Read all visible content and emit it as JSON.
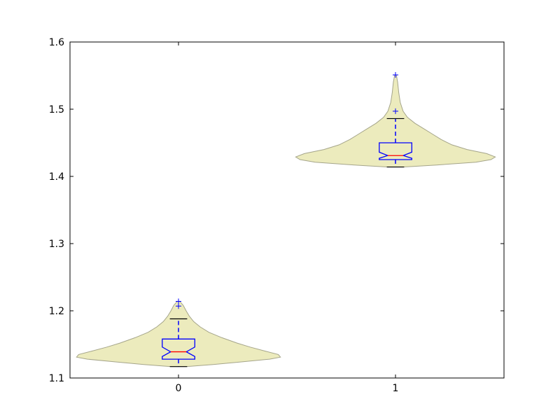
{
  "chart_data": {
    "type": "violin-box",
    "title": "",
    "xlabel": "",
    "ylabel": "",
    "ylim": [
      1.1,
      1.6
    ],
    "xlim": [
      -0.5,
      1.5
    ],
    "yticks": [
      "1.1",
      "1.2",
      "1.3",
      "1.4",
      "1.5",
      "1.6"
    ],
    "xticks": [
      "0",
      "1"
    ],
    "grid": false,
    "colors": {
      "violin_fill": "#ecebbd",
      "violin_edge": "#a5a58a",
      "box": "#0000ff",
      "median": "#ff0000",
      "cap": "#000000"
    },
    "groups": [
      {
        "x": 0,
        "q1": 1.128,
        "median": 1.139,
        "q3": 1.158,
        "notch_low": 1.132,
        "notch_high": 1.146,
        "whisker_low": 1.117,
        "whisker_high": 1.188,
        "outliers": [
          1.207,
          1.214
        ],
        "violin": [
          [
            1.117,
            0.035
          ],
          [
            1.12,
            0.16
          ],
          [
            1.124,
            0.29
          ],
          [
            1.128,
            0.42
          ],
          [
            1.131,
            0.47
          ],
          [
            1.135,
            0.46
          ],
          [
            1.14,
            0.4
          ],
          [
            1.146,
            0.33
          ],
          [
            1.152,
            0.27
          ],
          [
            1.16,
            0.2
          ],
          [
            1.168,
            0.14
          ],
          [
            1.176,
            0.1
          ],
          [
            1.184,
            0.07
          ],
          [
            1.192,
            0.05
          ],
          [
            1.2,
            0.035
          ],
          [
            1.208,
            0.022
          ],
          [
            1.214,
            0.006
          ]
        ]
      },
      {
        "x": 1,
        "q1": 1.425,
        "median": 1.431,
        "q3": 1.45,
        "notch_low": 1.427,
        "notch_high": 1.436,
        "whisker_low": 1.414,
        "whisker_high": 1.486,
        "outliers": [
          1.497,
          1.551
        ],
        "violin": [
          [
            1.414,
            0.035
          ],
          [
            1.417,
            0.19
          ],
          [
            1.421,
            0.37
          ],
          [
            1.425,
            0.44
          ],
          [
            1.429,
            0.46
          ],
          [
            1.434,
            0.42
          ],
          [
            1.44,
            0.33
          ],
          [
            1.447,
            0.26
          ],
          [
            1.455,
            0.21
          ],
          [
            1.463,
            0.17
          ],
          [
            1.471,
            0.13
          ],
          [
            1.479,
            0.09
          ],
          [
            1.488,
            0.055
          ],
          [
            1.497,
            0.035
          ],
          [
            1.51,
            0.022
          ],
          [
            1.525,
            0.015
          ],
          [
            1.54,
            0.01
          ],
          [
            1.551,
            0.004
          ]
        ]
      }
    ]
  }
}
